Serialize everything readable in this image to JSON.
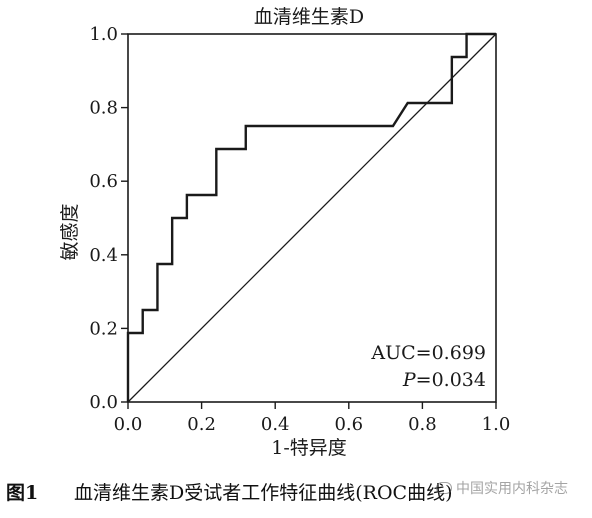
{
  "chart_data": {
    "type": "line",
    "title": "血清维生素D",
    "xlabel": "1-特异度",
    "ylabel": "敏感度",
    "xlim": [
      0.0,
      1.0
    ],
    "ylim": [
      0.0,
      1.0
    ],
    "x_ticks": [
      "0.0",
      "0.2",
      "0.4",
      "0.6",
      "0.8",
      "1.0"
    ],
    "y_ticks": [
      "0.0",
      "0.2",
      "0.4",
      "0.6",
      "0.8",
      "1.0"
    ],
    "grid": false,
    "series": [
      {
        "role": "roc",
        "color": "#1a1a1a",
        "x": [
          0.0,
          0.0,
          0.04,
          0.04,
          0.08,
          0.08,
          0.12,
          0.12,
          0.16,
          0.16,
          0.24,
          0.24,
          0.32,
          0.32,
          0.72,
          0.76,
          0.88,
          0.88,
          0.92,
          0.92,
          1.0
        ],
        "y": [
          0.0,
          0.1875,
          0.1875,
          0.25,
          0.25,
          0.375,
          0.375,
          0.5,
          0.5,
          0.5625,
          0.5625,
          0.6875,
          0.6875,
          0.75,
          0.75,
          0.8125,
          0.8125,
          0.9375,
          0.9375,
          1.0,
          1.0
        ]
      },
      {
        "role": "reference",
        "color": "#1a1a1a",
        "x": [
          0.0,
          1.0
        ],
        "y": [
          0.0,
          1.0
        ]
      }
    ],
    "annotations": [
      {
        "label": "AUC=0.699"
      },
      {
        "label_italic": "P",
        "label_rest": "=0.034"
      }
    ]
  },
  "caption": {
    "figure_number": "图1",
    "text": "血清维生素D受试者工作特征曲线(ROC曲线)"
  },
  "watermark": {
    "text": "中国实用内科杂志"
  }
}
